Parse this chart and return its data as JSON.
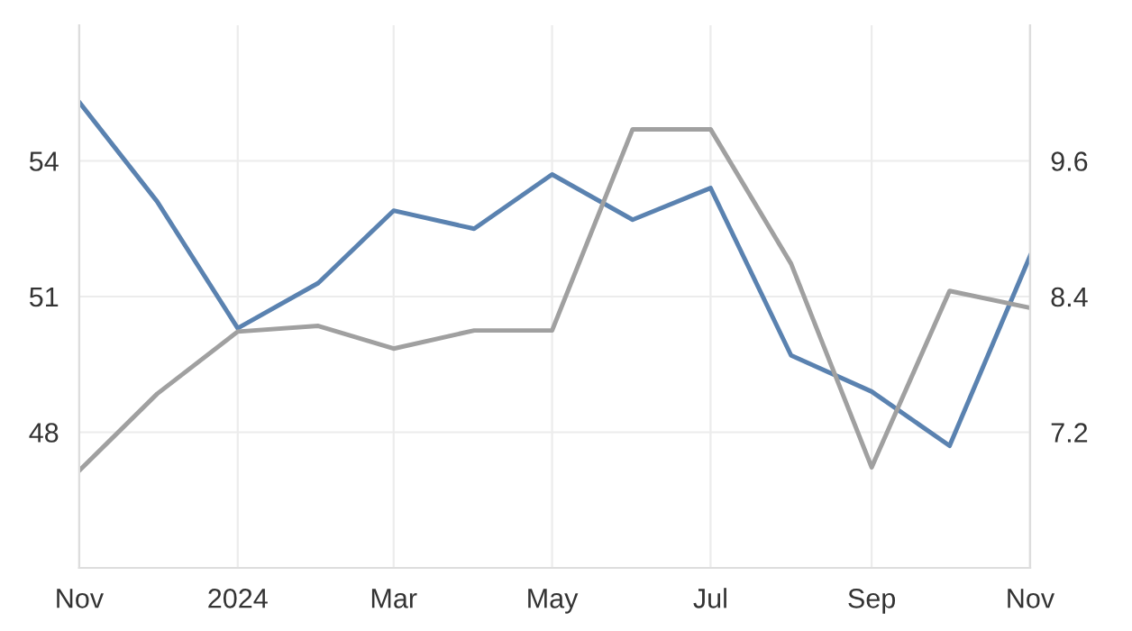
{
  "chart_data": {
    "type": "line",
    "x": [
      "2023-11",
      "2023-12",
      "2024-01",
      "2024-02",
      "2024-03",
      "2024-04",
      "2024-05",
      "2024-06",
      "2024-07",
      "2024-08",
      "2024-09",
      "2024-10",
      "2024-11"
    ],
    "series": [
      {
        "color": "#5a82b0",
        "values": [
          55.3,
          53.1,
          50.3,
          51.3,
          52.9,
          52.5,
          53.7,
          52.7,
          53.4,
          49.7,
          48.9,
          47.7,
          51.9
        ]
      },
      {
        "color": "#a0a0a0",
        "axis": "y2",
        "values": [
          6.86,
          7.54,
          8.09,
          8.14,
          7.94,
          8.1,
          8.1,
          9.88,
          9.88,
          8.69,
          6.89,
          8.45,
          8.3
        ]
      }
    ],
    "xlim": [
      "2023-11",
      "2024-11"
    ],
    "xticks": [
      {
        "value": "2023-11",
        "label": "Nov"
      },
      {
        "value": "2024-01",
        "label": "2024"
      },
      {
        "value": "2024-03",
        "label": "Mar"
      },
      {
        "value": "2024-05",
        "label": "May"
      },
      {
        "value": "2024-07",
        "label": "Jul"
      },
      {
        "value": "2024-09",
        "label": "Sep"
      },
      {
        "value": "2024-11",
        "label": "Nov"
      }
    ],
    "ylim": [
      45,
      57
    ],
    "yticks": [
      48,
      51,
      54
    ],
    "y2lim": [
      6.0,
      10.8
    ],
    "y2ticks": [
      7.2,
      8.4,
      9.6
    ],
    "grid": true,
    "line_style": "solid",
    "marker": "none"
  }
}
